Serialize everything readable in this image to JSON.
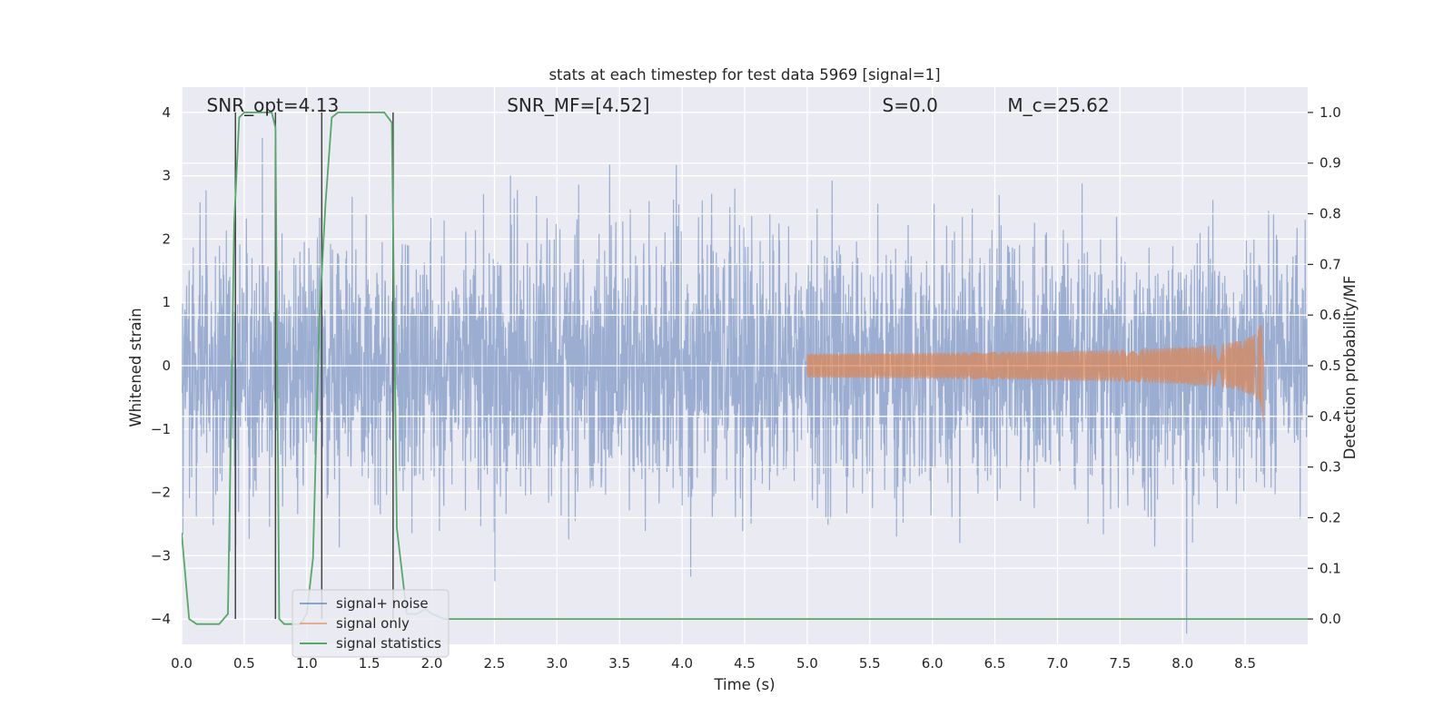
{
  "chart_data": {
    "type": "line",
    "title": "stats at each timestep for test data 5969 [signal=1]",
    "xlabel": "Time (s)",
    "ylabel_left": "Whitened strain",
    "ylabel_right": "Detection probability/MF",
    "xlim": [
      0.0,
      9.0
    ],
    "ylim_left": [
      -4.4,
      4.4
    ],
    "ylim_right": [
      -0.05,
      1.05
    ],
    "x_ticks": [
      0.0,
      0.5,
      1.0,
      1.5,
      2.0,
      2.5,
      3.0,
      3.5,
      4.0,
      4.5,
      5.0,
      5.5,
      6.0,
      6.5,
      7.0,
      7.5,
      8.0,
      8.5
    ],
    "x_tick_labels": [
      "0.0",
      "0.5",
      "1.0",
      "1.5",
      "2.0",
      "2.5",
      "3.0",
      "3.5",
      "4.0",
      "4.5",
      "5.0",
      "5.5",
      "6.0",
      "6.5",
      "7.0",
      "7.5",
      "8.0",
      "8.5"
    ],
    "y_left_ticks": [
      -4,
      -3,
      -2,
      -1,
      0,
      1,
      2,
      3,
      4
    ],
    "y_left_tick_labels": [
      "−4",
      "−3",
      "−2",
      "−1",
      "0",
      "1",
      "2",
      "3",
      "4"
    ],
    "y_right_ticks": [
      0.0,
      0.1,
      0.2,
      0.3,
      0.4,
      0.5,
      0.6,
      0.7,
      0.8,
      0.9,
      1.0
    ],
    "y_right_tick_labels": [
      "0.0",
      "0.1",
      "0.2",
      "0.3",
      "0.4",
      "0.5",
      "0.6",
      "0.7",
      "0.8",
      "0.9",
      "1.0"
    ],
    "grid": true,
    "legend_placement": "lower-left",
    "annotations": [
      {
        "text": "SNR_opt=4.13",
        "x": 0.2,
        "y": 4.1
      },
      {
        "text": "SNR_MF=[4.52]",
        "x": 2.6,
        "y": 4.1
      },
      {
        "text": "S=0.0",
        "x": 5.6,
        "y": 4.1
      },
      {
        "text": "M_c=25.62",
        "x": 6.6,
        "y": 4.1
      }
    ],
    "vertical_markers": [
      0.43,
      0.75,
      1.12,
      1.69
    ],
    "vertical_marker_range": [
      -4.0,
      4.0
    ],
    "series": [
      {
        "name": "signal+ noise",
        "axis": "left",
        "color": "#4c72b0",
        "opacity": 0.5,
        "kind": "noise",
        "duration": 9.0,
        "std": 1.0,
        "seed": 5969
      },
      {
        "name": "signal only",
        "axis": "left",
        "color": "#dd8452",
        "opacity": 0.5,
        "kind": "chirp",
        "t_start": 5.0,
        "t_end": 8.65,
        "peak_amplitude": 1.05
      },
      {
        "name": "signal statistics",
        "axis": "right",
        "color": "#55a868",
        "x": [
          0.0,
          0.06,
          0.12,
          0.2,
          0.3,
          0.37,
          0.42,
          0.46,
          0.5,
          0.56,
          0.65,
          0.72,
          0.75,
          0.78,
          0.82,
          0.87,
          0.95,
          1.0,
          1.05,
          1.1,
          1.15,
          1.2,
          1.25,
          1.35,
          1.5,
          1.62,
          1.68,
          1.72,
          1.8,
          1.88,
          1.95,
          2.0,
          2.1,
          2.3,
          3.0,
          4.0,
          5.0,
          6.0,
          7.0,
          8.0,
          9.0
        ],
        "values": [
          0.17,
          0.0,
          -0.01,
          -0.01,
          -0.01,
          0.01,
          0.78,
          0.99,
          1.0,
          1.0,
          1.0,
          1.0,
          0.97,
          0.0,
          -0.01,
          -0.01,
          -0.01,
          0.01,
          0.12,
          0.59,
          0.82,
          0.99,
          1.0,
          1.0,
          1.0,
          1.0,
          0.98,
          0.18,
          0.01,
          0.01,
          0.02,
          0.01,
          0.0,
          0.0,
          0.0,
          0.0,
          0.0,
          0.0,
          0.0,
          0.0,
          0.0
        ]
      }
    ]
  }
}
